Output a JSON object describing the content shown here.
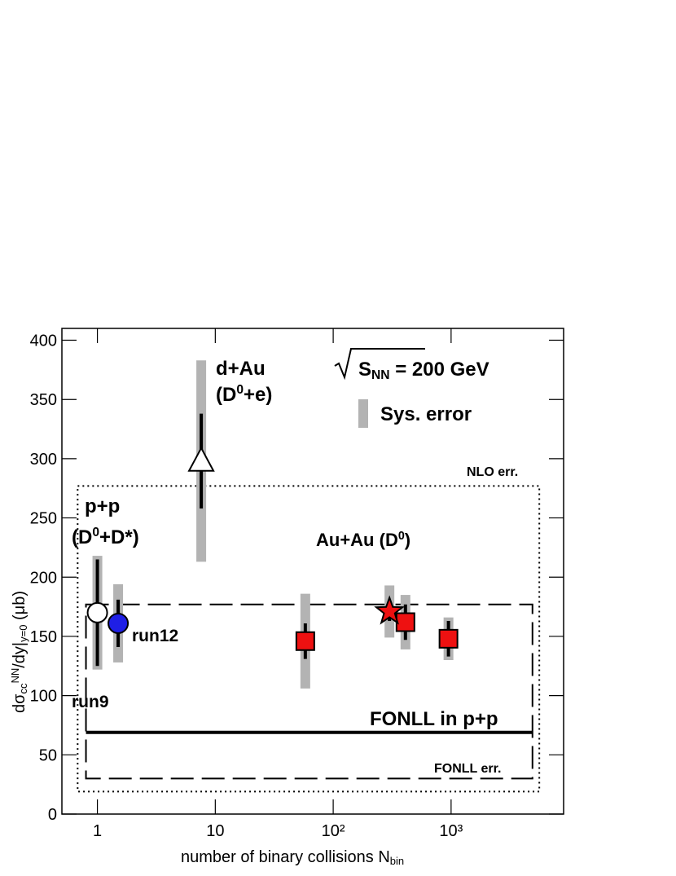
{
  "chart_data": {
    "type": "scatter",
    "xlabel": {
      "parts": [
        {
          "text": "number of binary collisions N"
        },
        {
          "text": "bin",
          "shift": "sub"
        }
      ]
    },
    "ylabel": {
      "parts": [
        {
          "text": "dσ"
        },
        {
          "text": "cc",
          "shift": "sub"
        },
        {
          "text": "NN",
          "shift": "sup"
        },
        {
          "text": "/dy|"
        },
        {
          "text": "y=0",
          "shift": "sub"
        },
        {
          "text": "  (μb)"
        }
      ]
    },
    "xlog": true,
    "xlim": [
      0.5,
      9000
    ],
    "xticks": [
      1,
      10,
      {
        "value": 100,
        "label": "10²"
      },
      {
        "value": 1000,
        "label": "10³"
      }
    ],
    "ylim": [
      0,
      410
    ],
    "yticks": [
      0,
      50,
      100,
      150,
      200,
      250,
      300,
      350,
      400
    ],
    "sys_color": "#b3b3b3",
    "series": [
      {
        "name": "run9",
        "marker": "circle",
        "color": "#ffffff",
        "x": [
          1
        ],
        "values": [
          170
        ],
        "errors": [
          45
        ],
        "sys_errors": [
          48
        ]
      },
      {
        "name": "run12",
        "marker": "circle",
        "color": "#1f1fe6",
        "x": [
          1.5
        ],
        "values": [
          161
        ],
        "errors": [
          20
        ],
        "sys_errors": [
          33
        ]
      },
      {
        "marker": "triangle",
        "color": "#ffffff",
        "x": [
          7.6
        ],
        "values": [
          298
        ],
        "errors": [
          40
        ],
        "sys_errors": [
          85
        ]
      },
      {
        "marker": "square",
        "color": "#ee1111",
        "x": [
          58,
          410,
          950
        ],
        "values": [
          146,
          162,
          148
        ],
        "errors": [
          15,
          15,
          15
        ],
        "sys_errors": [
          40,
          23,
          18
        ]
      },
      {
        "marker": "star",
        "color": "#ee1111",
        "x": [
          300
        ],
        "values": [
          171
        ],
        "errors": [
          8
        ],
        "sys_errors": [
          22
        ]
      }
    ],
    "lines": [
      {
        "style": "solid",
        "x": [
          0.8,
          4900
        ],
        "y": [
          69,
          69
        ]
      },
      {
        "style": "dashed",
        "x": [
          0.8,
          4900
        ],
        "y": [
          30,
          177
        ]
      },
      {
        "style": "dotted",
        "x": [
          0.68,
          5600
        ],
        "y": [
          19,
          277
        ]
      }
    ],
    "legend": {
      "label": "Sys. error"
    },
    "annotations": [
      {
        "parts": [
          {
            "text": "d+Au"
          }
        ]
      },
      {
        "parts": [
          {
            "text": "(D"
          },
          {
            "text": "0",
            "shift": "sup"
          },
          {
            "text": "+e)"
          }
        ]
      },
      {
        "parts": [
          {
            "text": "S"
          },
          {
            "text": "NN",
            "shift": "sub"
          },
          {
            "text": " = 200 GeV"
          }
        ]
      },
      {
        "parts": [
          {
            "text": "NLO err."
          }
        ]
      },
      {
        "parts": [
          {
            "text": "p+p"
          }
        ]
      },
      {
        "parts": [
          {
            "text": "(D"
          },
          {
            "text": "0",
            "shift": "sup"
          },
          {
            "text": "+D*)"
          }
        ]
      },
      {
        "parts": [
          {
            "text": "Au+Au (D"
          },
          {
            "text": "0",
            "shift": "sup"
          },
          {
            "text": ")"
          }
        ]
      },
      {
        "parts": [
          {
            "text": "FONLL in p+p"
          }
        ]
      },
      {
        "parts": [
          {
            "text": "FONLL err."
          }
        ]
      }
    ]
  }
}
